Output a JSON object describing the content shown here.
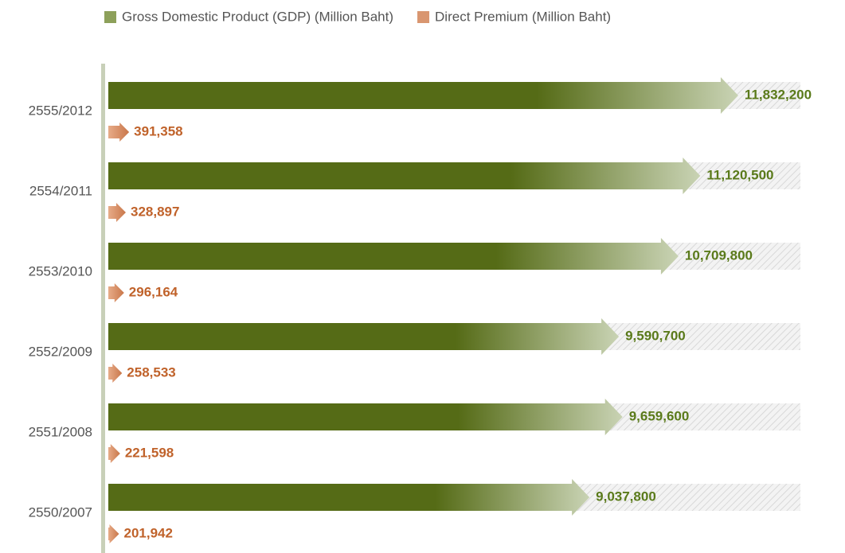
{
  "chart_data": {
    "type": "arrow-bar",
    "categories": [
      "2555/2012",
      "2554/2011",
      "2553/2010",
      "2552/2009",
      "2551/2008",
      "2550/2007"
    ],
    "series": [
      {
        "name": "Gross Domestic Product (GDP) (Million Baht)",
        "color": "#556b16",
        "label_color": "#5a7a1a",
        "values": [
          11832200,
          11120500,
          10709800,
          9590700,
          9659600,
          9037800
        ],
        "value_labels": [
          "11,832,200",
          "11,120,500",
          "10,709,800",
          "9,590,700",
          "9,659,600",
          "9,037,800"
        ]
      },
      {
        "name": "Direct Premium (Million Baht)",
        "color": "#d4875a",
        "label_color": "#c0622a",
        "values": [
          391358,
          328897,
          296164,
          258533,
          221598,
          201942
        ],
        "value_labels": [
          "391,358",
          "328,897",
          "296,164",
          "258,533",
          "221,598",
          "201,942"
        ]
      }
    ],
    "xlim": [
      0,
      13000000
    ],
    "legend": "top"
  }
}
